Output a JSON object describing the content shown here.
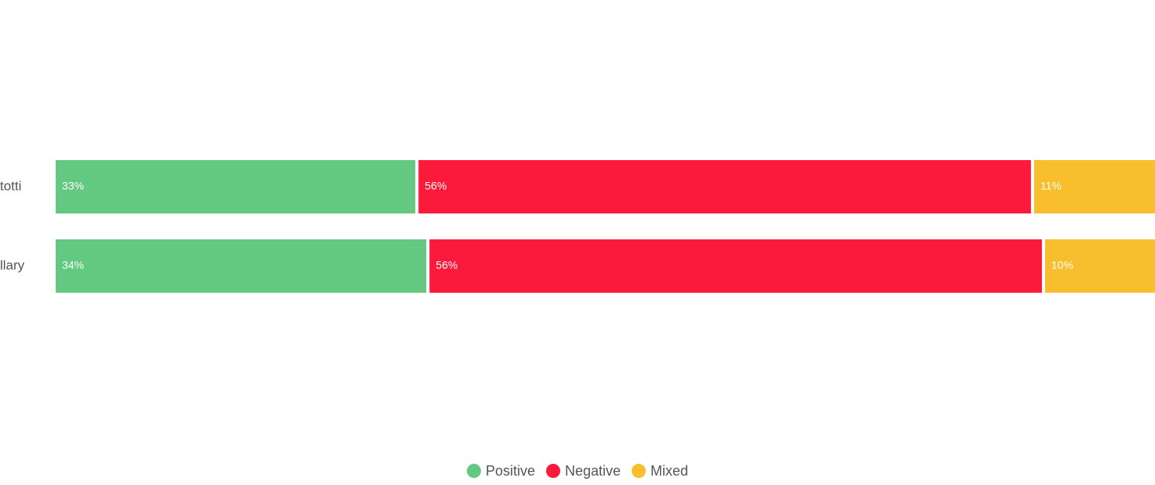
{
  "chart_data": {
    "type": "bar",
    "orientation": "horizontal",
    "stacked": true,
    "normalized_percent": true,
    "categories": [
      "totti",
      "llary"
    ],
    "series": [
      {
        "name": "Positive",
        "color": "#63c980",
        "values": [
          33,
          34
        ],
        "labels": [
          "33%",
          "34%"
        ]
      },
      {
        "name": "Negative",
        "color": "#fb1a3b",
        "values": [
          56,
          56
        ],
        "labels": [
          "56%",
          "56%"
        ]
      },
      {
        "name": "Mixed",
        "color": "#f8be2d",
        "values": [
          11,
          10
        ],
        "labels": [
          "11%",
          "10%"
        ]
      }
    ],
    "xlim": [
      0,
      100
    ],
    "grid": false,
    "legend_position": "bottom-center"
  }
}
